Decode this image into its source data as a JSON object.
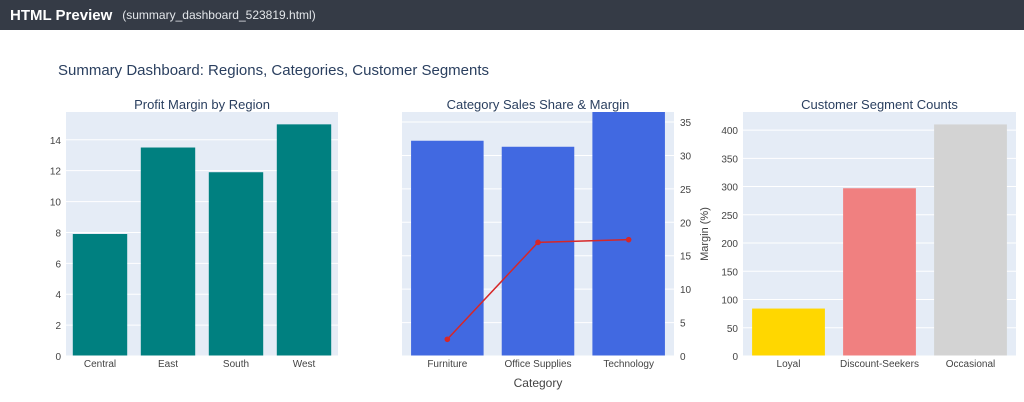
{
  "window": {
    "app_title": "HTML Preview",
    "file_name": "(summary_dashboard_523819.html)"
  },
  "dashboard": {
    "title": "Summary Dashboard: Regions, Categories, Customer Segments"
  },
  "colors": {
    "plot_bg": "#e5ecf6",
    "region_bar": "#008080",
    "category_bar": "#4169e1",
    "margin_line": "#d62728",
    "segment_bars": [
      "#ffd700",
      "#f08080",
      "#d3d3d3"
    ],
    "text": "#2a3f5f",
    "axis_text": "#444444"
  },
  "chart_data": [
    {
      "type": "bar",
      "title": "Profit Margin by Region",
      "categories": [
        "Central",
        "East",
        "South",
        "West"
      ],
      "values": [
        7.9,
        13.5,
        11.9,
        15.0
      ],
      "xlabel": "",
      "ylabel": "",
      "ylim": [
        0,
        15.8
      ],
      "yticks": [
        0,
        2,
        4,
        6,
        8,
        10,
        12,
        14
      ],
      "grid": true
    },
    {
      "type": "bar",
      "title": "Category Sales Share & Margin",
      "categories": [
        "Furniture",
        "Office Supplies",
        "Technology"
      ],
      "series": [
        {
          "kind": "bar",
          "axis": "y",
          "values": [
            32.2,
            31.3,
            36.5
          ]
        },
        {
          "kind": "line",
          "axis": "y2",
          "values": [
            2.5,
            17.0,
            17.4
          ]
        }
      ],
      "xlabel": "Category",
      "ylabel": "",
      "y2label": "Margin (%)",
      "ylim": [
        0,
        36.5
      ],
      "y2lim": [
        0,
        36.5
      ],
      "y2ticks": [
        0,
        5,
        10,
        15,
        20,
        25,
        30,
        35
      ],
      "grid": true
    },
    {
      "type": "bar",
      "title": "Customer Segment Counts",
      "categories": [
        "Loyal",
        "Discount-Seekers",
        "Occasional"
      ],
      "values": [
        84,
        297,
        410
      ],
      "xlabel": "",
      "ylabel": "",
      "ylim": [
        0,
        432
      ],
      "yticks": [
        0,
        50,
        100,
        150,
        200,
        250,
        300,
        350,
        400
      ],
      "grid": true
    }
  ]
}
